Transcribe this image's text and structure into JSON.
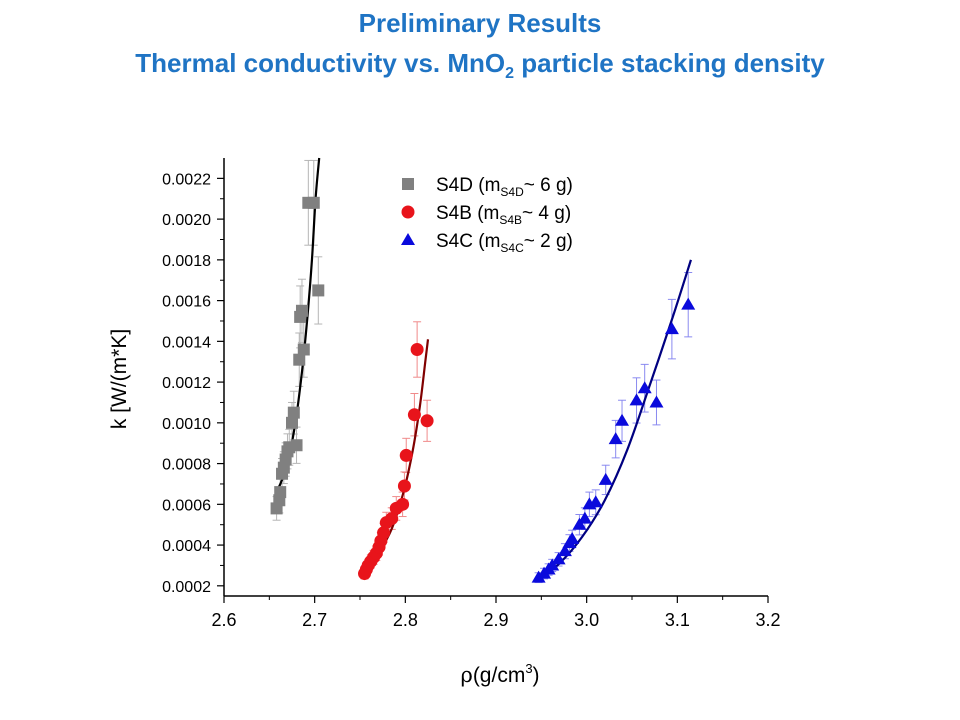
{
  "slide": {
    "title_line1": "Preliminary Results",
    "title_line2_prefix": "Thermal conductivity vs. MnO",
    "title_line2_sub": "2",
    "title_line2_suffix": " particle stacking density",
    "title_color": "#1f74c4"
  },
  "chart_data": {
    "type": "scatter",
    "xlabel_symbol": "ρ",
    "xlabel_unit": "(g/cm",
    "xlabel_sup": "3",
    "xlabel_close": ")",
    "ylabel": "k [W/(m*K]",
    "xlim": [
      2.6,
      3.2
    ],
    "ylim": [
      0.00015,
      0.0023
    ],
    "x_ticks": [
      "2.6",
      "2.7",
      "2.8",
      "2.9",
      "3.0",
      "3.1",
      "3.2"
    ],
    "x_tick_values": [
      2.6,
      2.7,
      2.8,
      2.9,
      3.0,
      3.1,
      3.2
    ],
    "y_ticks": [
      "0.0002",
      "0.0004",
      "0.0006",
      "0.0008",
      "0.0010",
      "0.0012",
      "0.0014",
      "0.0016",
      "0.0018",
      "0.0020",
      "0.0022"
    ],
    "y_tick_values": [
      0.0002,
      0.0004,
      0.0006,
      0.0008,
      0.001,
      0.0012,
      0.0014,
      0.0016,
      0.0018,
      0.002,
      0.0022
    ],
    "grid": false,
    "legend_position": "top-right",
    "error_bars": true,
    "series": [
      {
        "legend_main": "S4D (m",
        "legend_sub": "S4D",
        "legend_tail": "~ 6 g)",
        "marker": "square",
        "color": "#808080",
        "fit_color": "#000000",
        "points": [
          [
            2.658,
            0.00058
          ],
          [
            2.661,
            0.00062
          ],
          [
            2.662,
            0.00066
          ],
          [
            2.664,
            0.00075
          ],
          [
            2.666,
            0.00078
          ],
          [
            2.668,
            0.00082
          ],
          [
            2.67,
            0.00086
          ],
          [
            2.672,
            0.00088
          ],
          [
            2.675,
            0.001
          ],
          [
            2.677,
            0.00105
          ],
          [
            2.68,
            0.00089
          ],
          [
            2.683,
            0.00131
          ],
          [
            2.684,
            0.00152
          ],
          [
            2.686,
            0.00155
          ],
          [
            2.688,
            0.00136
          ],
          [
            2.693,
            0.00208
          ],
          [
            2.699,
            0.00208
          ],
          [
            2.704,
            0.00165
          ]
        ],
        "fit": [
          [
            2.657,
            0.00065
          ],
          [
            2.668,
            0.00077
          ],
          [
            2.678,
            0.00098
          ],
          [
            2.686,
            0.00125
          ],
          [
            2.692,
            0.00152
          ],
          [
            2.697,
            0.0018
          ],
          [
            2.701,
            0.0021
          ],
          [
            2.705,
            0.0023
          ]
        ]
      },
      {
        "legend_main": "S4B (m",
        "legend_sub": "S4B",
        "legend_tail": "~ 4 g)",
        "marker": "circle",
        "color": "#e8141b",
        "fit_color": "#800000",
        "points": [
          [
            2.755,
            0.00026
          ],
          [
            2.757,
            0.00028
          ],
          [
            2.759,
            0.0003
          ],
          [
            2.762,
            0.00032
          ],
          [
            2.765,
            0.00034
          ],
          [
            2.768,
            0.00036
          ],
          [
            2.771,
            0.00039
          ],
          [
            2.773,
            0.00042
          ],
          [
            2.776,
            0.00046
          ],
          [
            2.779,
            0.00051
          ],
          [
            2.785,
            0.00053
          ],
          [
            2.79,
            0.00058
          ],
          [
            2.797,
            0.0006
          ],
          [
            2.799,
            0.00069
          ],
          [
            2.801,
            0.00084
          ],
          [
            2.81,
            0.00104
          ],
          [
            2.813,
            0.00136
          ],
          [
            2.824,
            0.00101
          ]
        ],
        "fit": [
          [
            2.753,
            0.00027
          ],
          [
            2.77,
            0.00036
          ],
          [
            2.785,
            0.00048
          ],
          [
            2.798,
            0.00066
          ],
          [
            2.808,
            0.00086
          ],
          [
            2.816,
            0.00108
          ],
          [
            2.822,
            0.0013
          ],
          [
            2.825,
            0.00141
          ]
        ]
      },
      {
        "legend_main": "S4C (m",
        "legend_sub": "S4C",
        "legend_tail": "~ 2 g)",
        "marker": "triangle",
        "color": "#0a0adc",
        "fit_color": "#000080",
        "points": [
          [
            2.947,
            0.00024
          ],
          [
            2.953,
            0.00026
          ],
          [
            2.958,
            0.00028
          ],
          [
            2.962,
            0.0003
          ],
          [
            2.969,
            0.00033
          ],
          [
            2.976,
            0.00037
          ],
          [
            2.981,
            0.00041
          ],
          [
            2.984,
            0.00043
          ],
          [
            2.992,
            0.0005
          ],
          [
            2.998,
            0.00053
          ],
          [
            3.003,
            0.0006
          ],
          [
            3.01,
            0.00061
          ],
          [
            3.021,
            0.00072
          ],
          [
            3.032,
            0.00092
          ],
          [
            3.039,
            0.00101
          ],
          [
            3.055,
            0.00111
          ],
          [
            3.064,
            0.00117
          ],
          [
            3.077,
            0.0011
          ],
          [
            3.094,
            0.00146
          ],
          [
            3.112,
            0.00158
          ]
        ],
        "fit": [
          [
            2.944,
            0.00022
          ],
          [
            2.97,
            0.00031
          ],
          [
            2.995,
            0.00044
          ],
          [
            3.02,
            0.00062
          ],
          [
            3.045,
            0.00087
          ],
          [
            3.07,
            0.00119
          ],
          [
            3.095,
            0.00152
          ],
          [
            3.115,
            0.0018
          ]
        ]
      }
    ]
  }
}
